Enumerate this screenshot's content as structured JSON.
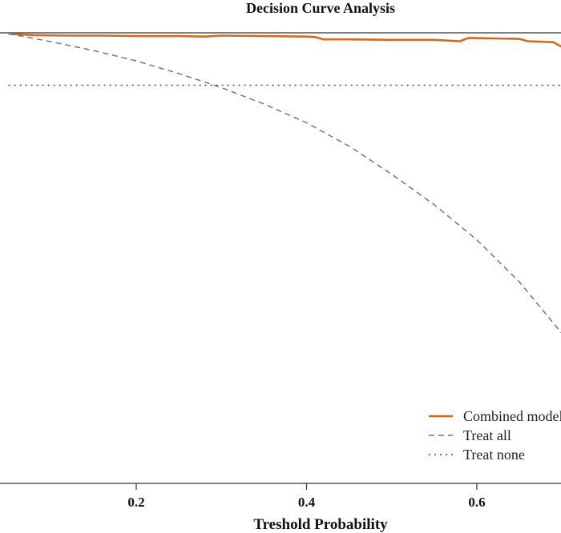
{
  "chart_data": {
    "type": "line",
    "title": "Decision Curve Analysis",
    "xlabel": "Treshold Probability",
    "ylabel": "",
    "xlim": [
      0.05,
      0.7
    ],
    "ylim": [
      -0.85,
      0.112
    ],
    "x_ticks": [
      "0.2",
      "0.4",
      "0.6"
    ],
    "x_tick_values": [
      0.2,
      0.4,
      0.6
    ],
    "grid": false,
    "legend_position": "bottom-right",
    "series": [
      {
        "name": "Combined model",
        "color": "#d2691e",
        "style": "solid",
        "x": [
          0.05,
          0.08,
          0.12,
          0.16,
          0.2,
          0.25,
          0.28,
          0.3,
          0.35,
          0.4,
          0.41,
          0.42,
          0.45,
          0.5,
          0.55,
          0.58,
          0.59,
          0.62,
          0.65,
          0.66,
          0.69,
          0.7
        ],
        "y": [
          0.11,
          0.107,
          0.106,
          0.106,
          0.105,
          0.105,
          0.104,
          0.106,
          0.105,
          0.104,
          0.103,
          0.098,
          0.098,
          0.097,
          0.097,
          0.094,
          0.101,
          0.1,
          0.099,
          0.094,
          0.092,
          0.082
        ]
      },
      {
        "name": "Treat all",
        "color": "#777777",
        "style": "dashed",
        "x": [
          0.05,
          0.1,
          0.15,
          0.2,
          0.25,
          0.3,
          0.35,
          0.4,
          0.45,
          0.5,
          0.55,
          0.6,
          0.65,
          0.7
        ],
        "y": [
          0.11,
          0.093,
          0.074,
          0.052,
          0.025,
          -0.005,
          -0.04,
          -0.08,
          -0.13,
          -0.19,
          -0.255,
          -0.33,
          -0.42,
          -0.53
        ]
      },
      {
        "name": "Treat none",
        "color": "#444444",
        "style": "dotted",
        "x": [
          0.05,
          0.7
        ],
        "y": [
          0,
          0
        ]
      }
    ]
  }
}
